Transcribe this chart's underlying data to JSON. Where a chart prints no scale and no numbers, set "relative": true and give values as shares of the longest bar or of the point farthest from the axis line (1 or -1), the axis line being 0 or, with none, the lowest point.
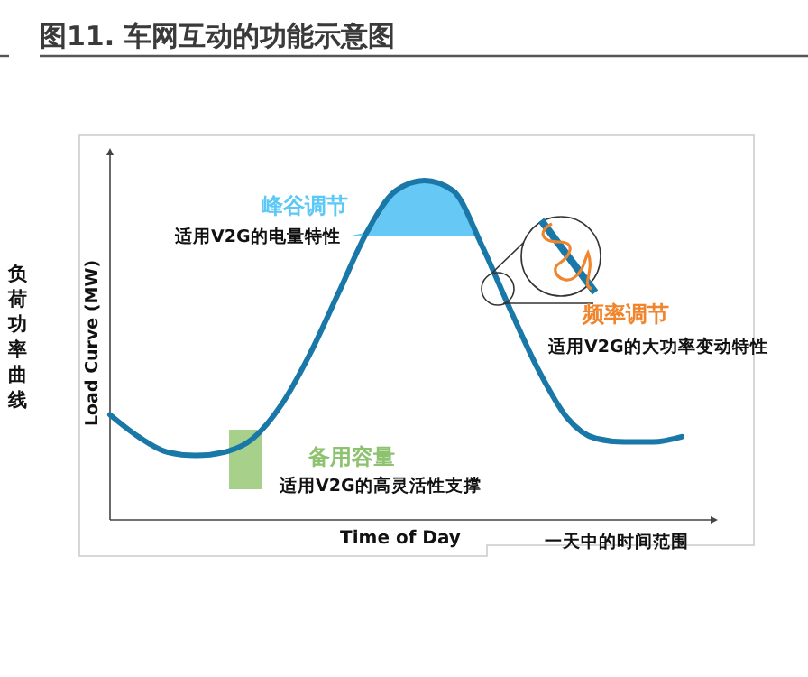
{
  "chart_data": {
    "type": "line",
    "title": "图11. 车网互动的功能示意图",
    "xlabel": "Time of Day",
    "ylabel": "Load Curve (MW)",
    "relative": true,
    "categories": [
      null,
      null,
      null,
      null,
      null,
      null,
      null,
      null,
      null,
      null,
      null,
      null,
      null,
      null,
      null,
      null,
      null,
      null,
      null,
      null,
      null
    ],
    "series": [
      {
        "color": "#1a78a8",
        "values": [
          0.31,
          0.245,
          0.2,
          0.19,
          0.2,
          0.24,
          0.34,
          0.49,
          0.67,
          0.85,
          0.97,
          1.0,
          0.97,
          0.81,
          0.62,
          0.44,
          0.3,
          0.24,
          0.23,
          0.23,
          0.245
        ]
      }
    ],
    "annotations": [
      "峰谷调节",
      "适用V2G的电量特性",
      "频率调节",
      "适用V2G的大功率变动特性",
      "备用容量",
      "适用V2G的高灵活性支撑",
      "一天中的时间范围",
      "负荷功率曲线"
    ],
    "marker": "none",
    "line_style": "solid"
  }
}
